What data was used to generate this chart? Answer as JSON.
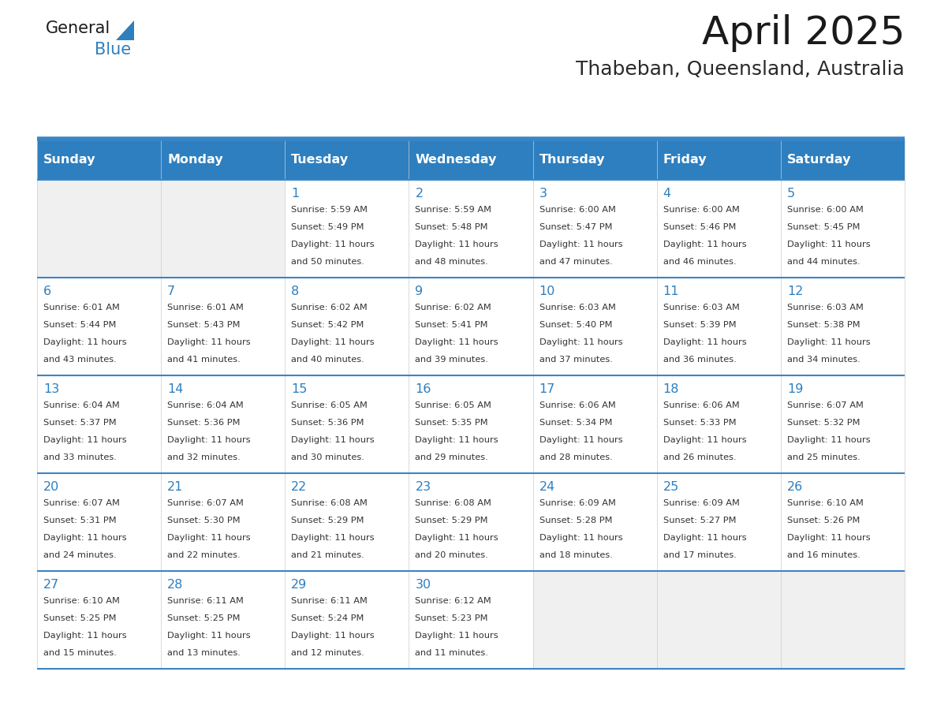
{
  "title": "April 2025",
  "subtitle": "Thabeban, Queensland, Australia",
  "days_of_week": [
    "Sunday",
    "Monday",
    "Tuesday",
    "Wednesday",
    "Thursday",
    "Friday",
    "Saturday"
  ],
  "header_bg": "#2E7FBF",
  "header_text": "#FFFFFF",
  "row_bg_light": "#FFFFFF",
  "row_bg_empty": "#F0F0F0",
  "row_separator_color": "#3a85c5",
  "title_color": "#1a1a1a",
  "subtitle_color": "#2a2a2a",
  "day_number_color": "#2E7FBF",
  "text_color": "#333333",
  "logo_dark": "#1a1a1a",
  "logo_blue": "#2E7FBF",
  "calendar_data": [
    [
      null,
      null,
      {
        "day": "1",
        "sunrise": "5:59 AM",
        "sunset": "5:49 PM",
        "dl1": "Daylight: 11 hours",
        "dl2": "and 50 minutes."
      },
      {
        "day": "2",
        "sunrise": "5:59 AM",
        "sunset": "5:48 PM",
        "dl1": "Daylight: 11 hours",
        "dl2": "and 48 minutes."
      },
      {
        "day": "3",
        "sunrise": "6:00 AM",
        "sunset": "5:47 PM",
        "dl1": "Daylight: 11 hours",
        "dl2": "and 47 minutes."
      },
      {
        "day": "4",
        "sunrise": "6:00 AM",
        "sunset": "5:46 PM",
        "dl1": "Daylight: 11 hours",
        "dl2": "and 46 minutes."
      },
      {
        "day": "5",
        "sunrise": "6:00 AM",
        "sunset": "5:45 PM",
        "dl1": "Daylight: 11 hours",
        "dl2": "and 44 minutes."
      }
    ],
    [
      {
        "day": "6",
        "sunrise": "6:01 AM",
        "sunset": "5:44 PM",
        "dl1": "Daylight: 11 hours",
        "dl2": "and 43 minutes."
      },
      {
        "day": "7",
        "sunrise": "6:01 AM",
        "sunset": "5:43 PM",
        "dl1": "Daylight: 11 hours",
        "dl2": "and 41 minutes."
      },
      {
        "day": "8",
        "sunrise": "6:02 AM",
        "sunset": "5:42 PM",
        "dl1": "Daylight: 11 hours",
        "dl2": "and 40 minutes."
      },
      {
        "day": "9",
        "sunrise": "6:02 AM",
        "sunset": "5:41 PM",
        "dl1": "Daylight: 11 hours",
        "dl2": "and 39 minutes."
      },
      {
        "day": "10",
        "sunrise": "6:03 AM",
        "sunset": "5:40 PM",
        "dl1": "Daylight: 11 hours",
        "dl2": "and 37 minutes."
      },
      {
        "day": "11",
        "sunrise": "6:03 AM",
        "sunset": "5:39 PM",
        "dl1": "Daylight: 11 hours",
        "dl2": "and 36 minutes."
      },
      {
        "day": "12",
        "sunrise": "6:03 AM",
        "sunset": "5:38 PM",
        "dl1": "Daylight: 11 hours",
        "dl2": "and 34 minutes."
      }
    ],
    [
      {
        "day": "13",
        "sunrise": "6:04 AM",
        "sunset": "5:37 PM",
        "dl1": "Daylight: 11 hours",
        "dl2": "and 33 minutes."
      },
      {
        "day": "14",
        "sunrise": "6:04 AM",
        "sunset": "5:36 PM",
        "dl1": "Daylight: 11 hours",
        "dl2": "and 32 minutes."
      },
      {
        "day": "15",
        "sunrise": "6:05 AM",
        "sunset": "5:36 PM",
        "dl1": "Daylight: 11 hours",
        "dl2": "and 30 minutes."
      },
      {
        "day": "16",
        "sunrise": "6:05 AM",
        "sunset": "5:35 PM",
        "dl1": "Daylight: 11 hours",
        "dl2": "and 29 minutes."
      },
      {
        "day": "17",
        "sunrise": "6:06 AM",
        "sunset": "5:34 PM",
        "dl1": "Daylight: 11 hours",
        "dl2": "and 28 minutes."
      },
      {
        "day": "18",
        "sunrise": "6:06 AM",
        "sunset": "5:33 PM",
        "dl1": "Daylight: 11 hours",
        "dl2": "and 26 minutes."
      },
      {
        "day": "19",
        "sunrise": "6:07 AM",
        "sunset": "5:32 PM",
        "dl1": "Daylight: 11 hours",
        "dl2": "and 25 minutes."
      }
    ],
    [
      {
        "day": "20",
        "sunrise": "6:07 AM",
        "sunset": "5:31 PM",
        "dl1": "Daylight: 11 hours",
        "dl2": "and 24 minutes."
      },
      {
        "day": "21",
        "sunrise": "6:07 AM",
        "sunset": "5:30 PM",
        "dl1": "Daylight: 11 hours",
        "dl2": "and 22 minutes."
      },
      {
        "day": "22",
        "sunrise": "6:08 AM",
        "sunset": "5:29 PM",
        "dl1": "Daylight: 11 hours",
        "dl2": "and 21 minutes."
      },
      {
        "day": "23",
        "sunrise": "6:08 AM",
        "sunset": "5:29 PM",
        "dl1": "Daylight: 11 hours",
        "dl2": "and 20 minutes."
      },
      {
        "day": "24",
        "sunrise": "6:09 AM",
        "sunset": "5:28 PM",
        "dl1": "Daylight: 11 hours",
        "dl2": "and 18 minutes."
      },
      {
        "day": "25",
        "sunrise": "6:09 AM",
        "sunset": "5:27 PM",
        "dl1": "Daylight: 11 hours",
        "dl2": "and 17 minutes."
      },
      {
        "day": "26",
        "sunrise": "6:10 AM",
        "sunset": "5:26 PM",
        "dl1": "Daylight: 11 hours",
        "dl2": "and 16 minutes."
      }
    ],
    [
      {
        "day": "27",
        "sunrise": "6:10 AM",
        "sunset": "5:25 PM",
        "dl1": "Daylight: 11 hours",
        "dl2": "and 15 minutes."
      },
      {
        "day": "28",
        "sunrise": "6:11 AM",
        "sunset": "5:25 PM",
        "dl1": "Daylight: 11 hours",
        "dl2": "and 13 minutes."
      },
      {
        "day": "29",
        "sunrise": "6:11 AM",
        "sunset": "5:24 PM",
        "dl1": "Daylight: 11 hours",
        "dl2": "and 12 minutes."
      },
      {
        "day": "30",
        "sunrise": "6:12 AM",
        "sunset": "5:23 PM",
        "dl1": "Daylight: 11 hours",
        "dl2": "and 11 minutes."
      },
      null,
      null,
      null
    ]
  ]
}
